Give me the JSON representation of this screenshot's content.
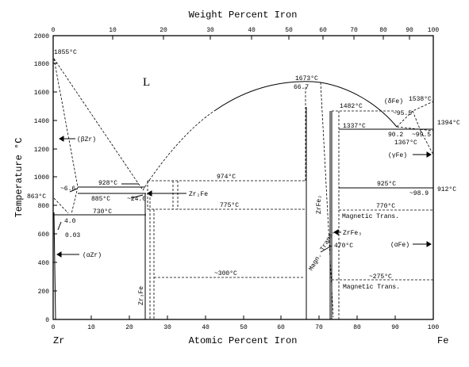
{
  "diagram": {
    "top_axis": {
      "title": "Weight Percent Iron",
      "ticks": [
        "0",
        "10",
        "20",
        "30",
        "40",
        "50",
        "60",
        "70",
        "80",
        "90",
        "100"
      ]
    },
    "bottom_axis": {
      "title": "Atomic Percent Iron",
      "ticks": [
        "0",
        "10",
        "20",
        "30",
        "40",
        "50",
        "60",
        "70",
        "80",
        "90",
        "100"
      ],
      "left_end": "Zr",
      "right_end": "Fe"
    },
    "left_axis": {
      "title": "Temperature °C",
      "ticks": [
        "0",
        "200",
        "400",
        "600",
        "800",
        "1000",
        "1200",
        "1400",
        "1600",
        "1800",
        "2000"
      ]
    },
    "phases": {
      "liquid": "L",
      "beta_zr": "(βZr)",
      "alpha_zr": "(αZr)",
      "zr2fe": "Zr₂Fe",
      "zr3fe": "Zr₃Fe",
      "zrfe2": "ZrFe₂",
      "zrfe3": "ZrFe₃",
      "delta_fe": "(δFe)",
      "gamma_fe": "(γFe)",
      "alpha_fe": "(αFe)"
    },
    "labels": {
      "t1855": "1855°C",
      "t1673": "1673°C",
      "c66_7": "66.7",
      "t1482": "1482°C",
      "t1538": "1538°C",
      "t1394": "1394°C",
      "c95_5": "~95.5",
      "c90_2": "90.2",
      "c99_5": "~99.5",
      "t1337": "1337°C",
      "t1367": "1367°C",
      "t928": "928°C",
      "t974": "974°C",
      "c6_6": "~6.6",
      "t885": "885°C",
      "c24_0": "~24.0",
      "t863": "863°C",
      "t775": "775°C",
      "t730": "730°C",
      "c4_0": "4.0",
      "c0_03": "0.03",
      "t925": "925°C",
      "c98_9": "~98.9",
      "t912": "912°C",
      "t770": "770°C",
      "magnetic_1": "Magnetic Trans.",
      "magnetic_2": "Magnetic Trans.",
      "magn_trans": "Magn. Trans.",
      "t470": "470°C",
      "t300": "~300°C",
      "t275": "~275°C"
    }
  }
}
